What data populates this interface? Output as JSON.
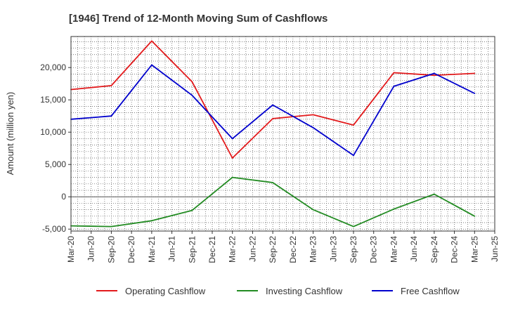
{
  "chart_data": {
    "type": "line",
    "title": "[1946]  Trend of 12-Month Moving Sum of Cashflows",
    "xlabel": "",
    "ylabel": "Amount (million yen)",
    "x_ticks": [
      "Mar-20",
      "Jun-20",
      "Sep-20",
      "Dec-20",
      "Mar-21",
      "Jun-21",
      "Sep-21",
      "Dec-21",
      "Mar-22",
      "Jun-22",
      "Sep-22",
      "Dec-22",
      "Mar-23",
      "Jun-23",
      "Sep-23",
      "Dec-23",
      "Mar-24",
      "Jun-24",
      "Sep-24",
      "Dec-24",
      "Mar-25",
      "Jun-25"
    ],
    "y_ticks": [
      -5000,
      0,
      5000,
      10000,
      15000,
      20000
    ],
    "y_tick_labels": [
      "-5,000",
      "0",
      "5,000",
      "10,000",
      "15,000",
      "20,000"
    ],
    "ylim": [
      -5300,
      24800
    ],
    "grid": true,
    "legend_position": "bottom",
    "series": [
      {
        "name": "Operating Cashflow",
        "color": "#e31a1c",
        "x": [
          "Mar-20",
          "Sep-20",
          "Mar-21",
          "Sep-21",
          "Mar-22",
          "Sep-22",
          "Mar-23",
          "Sep-23",
          "Mar-24",
          "Sep-24",
          "Mar-25"
        ],
        "values": [
          16600,
          17200,
          24100,
          17800,
          6000,
          12100,
          12700,
          11100,
          19200,
          18800,
          19100
        ]
      },
      {
        "name": "Investing Cashflow",
        "color": "#228b22",
        "x": [
          "Mar-20",
          "Sep-20",
          "Mar-21",
          "Sep-21",
          "Mar-22",
          "Sep-22",
          "Mar-23",
          "Sep-23",
          "Mar-24",
          "Sep-24",
          "Mar-25"
        ],
        "values": [
          -4500,
          -4600,
          -3700,
          -2100,
          3000,
          2200,
          -2000,
          -4600,
          -1900,
          400,
          -3000
        ]
      },
      {
        "name": "Free Cashflow",
        "color": "#0000cd",
        "x": [
          "Mar-20",
          "Sep-20",
          "Mar-21",
          "Sep-21",
          "Mar-22",
          "Sep-22",
          "Mar-23",
          "Sep-23",
          "Mar-24",
          "Sep-24",
          "Mar-25"
        ],
        "values": [
          12000,
          12500,
          20400,
          15700,
          9000,
          14200,
          10700,
          6400,
          17100,
          19100,
          16000
        ]
      }
    ]
  }
}
